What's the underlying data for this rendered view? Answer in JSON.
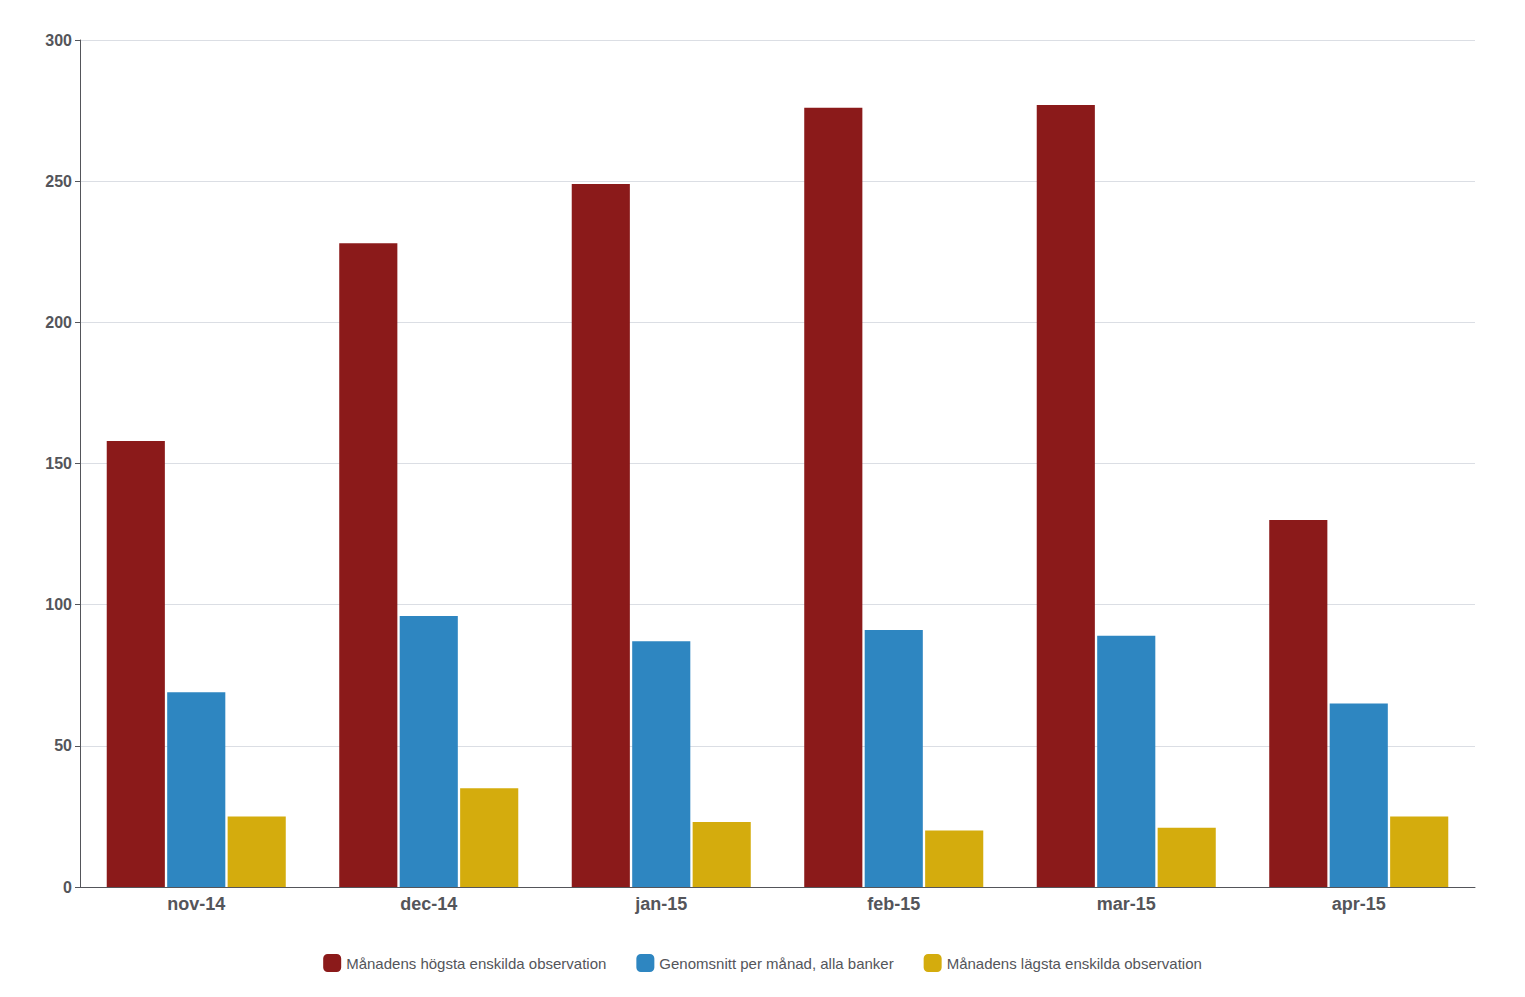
{
  "chart_data": {
    "type": "bar",
    "categories": [
      "nov-14",
      "dec-14",
      "jan-15",
      "feb-15",
      "mar-15",
      "apr-15"
    ],
    "series": [
      {
        "name": "Månadens högsta enskilda observation",
        "color": "#8B1A1A",
        "values": [
          158,
          228,
          249,
          276,
          277,
          130
        ]
      },
      {
        "name": "Genomsnitt per månad, alla banker",
        "color": "#2E86C1",
        "values": [
          69,
          96,
          87,
          91,
          89,
          65
        ]
      },
      {
        "name": "Månadens lägsta enskilda observation",
        "color": "#D4AC0D",
        "values": [
          25,
          35,
          23,
          20,
          21,
          25
        ]
      }
    ],
    "ylim": [
      0,
      300
    ],
    "yticks": [
      0,
      50,
      100,
      150,
      200,
      250,
      300
    ],
    "grid": true,
    "legend": "bottom"
  }
}
